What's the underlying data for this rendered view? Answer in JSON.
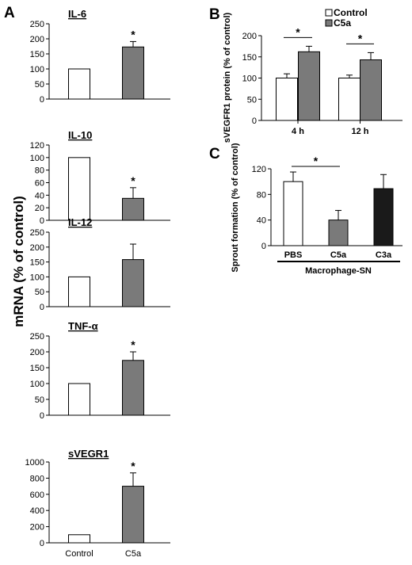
{
  "figure": {
    "panel_letters": [
      "A",
      "B",
      "C"
    ],
    "shared_ylabel_A": "mRNA (% of control)"
  },
  "chart_data": [
    {
      "panel": "A",
      "type": "bar",
      "title": "IL-6",
      "categories": [
        "Control",
        "C5a"
      ],
      "values": [
        100,
        173
      ],
      "errors": [
        0,
        18
      ],
      "ylim": [
        0,
        250
      ],
      "yticks": [
        0,
        50,
        100,
        150,
        200,
        250
      ],
      "significance": [
        "",
        "*"
      ],
      "bar_colors": [
        "#ffffff",
        "#7a7a7a"
      ],
      "xlabel": "",
      "show_category_labels": false
    },
    {
      "panel": "A",
      "type": "bar",
      "title": "IL-10",
      "categories": [
        "Control",
        "C5a"
      ],
      "values": [
        100,
        35
      ],
      "errors": [
        0,
        17
      ],
      "ylim": [
        0,
        120
      ],
      "yticks": [
        0,
        20,
        40,
        60,
        80,
        100,
        120
      ],
      "significance": [
        "",
        "*"
      ],
      "bar_colors": [
        "#ffffff",
        "#7a7a7a"
      ],
      "xlabel": "",
      "show_category_labels": false
    },
    {
      "panel": "A",
      "type": "bar",
      "title": "IL-12",
      "categories": [
        "Control",
        "C5a"
      ],
      "values": [
        100,
        158
      ],
      "errors": [
        0,
        52
      ],
      "ylim": [
        0,
        250
      ],
      "yticks": [
        0,
        50,
        100,
        150,
        200,
        250
      ],
      "significance": [
        "",
        ""
      ],
      "bar_colors": [
        "#ffffff",
        "#7a7a7a"
      ],
      "xlabel": "",
      "show_category_labels": false
    },
    {
      "panel": "A",
      "type": "bar",
      "title": "TNF-α",
      "categories": [
        "Control",
        "C5a"
      ],
      "values": [
        100,
        173
      ],
      "errors": [
        0,
        27
      ],
      "ylim": [
        0,
        250
      ],
      "yticks": [
        0,
        50,
        100,
        150,
        200,
        250
      ],
      "significance": [
        "",
        "*"
      ],
      "bar_colors": [
        "#ffffff",
        "#7a7a7a"
      ],
      "xlabel": "",
      "show_category_labels": false
    },
    {
      "panel": "A",
      "type": "bar",
      "title": "sVEGR1",
      "categories": [
        "Control",
        "C5a"
      ],
      "values": [
        100,
        700
      ],
      "errors": [
        0,
        165
      ],
      "ylim": [
        0,
        1000
      ],
      "yticks": [
        0,
        200,
        400,
        600,
        800,
        1000
      ],
      "significance": [
        "",
        "*"
      ],
      "bar_colors": [
        "#ffffff",
        "#7a7a7a"
      ],
      "xlabel": "",
      "show_category_labels": true
    },
    {
      "panel": "B",
      "type": "bar",
      "ylabel": "sVEGFR1 protein (% of control)",
      "categories": [
        "4 h",
        "12 h"
      ],
      "series": [
        {
          "name": "Control",
          "values": [
            100,
            100
          ],
          "errors": [
            10,
            7
          ],
          "color": "#ffffff"
        },
        {
          "name": "C5a",
          "values": [
            162,
            143
          ],
          "errors": [
            13,
            17
          ],
          "color": "#7a7a7a"
        }
      ],
      "ylim": [
        0,
        200
      ],
      "yticks": [
        0,
        50,
        100,
        150,
        200
      ],
      "significance": [
        "*",
        "*"
      ],
      "legend": "top-left"
    },
    {
      "panel": "C",
      "type": "bar",
      "ylabel": "Sprout formation (% of control)",
      "categories": [
        "PBS",
        "C5a",
        "C3a"
      ],
      "values": [
        100,
        40,
        89
      ],
      "errors": [
        15,
        15,
        22
      ],
      "bar_colors": [
        "#ffffff",
        "#7a7a7a",
        "#1a1a1a"
      ],
      "ylim": [
        0,
        120
      ],
      "yticks": [
        0,
        40,
        80,
        120
      ],
      "significance_pair": [
        "PBS",
        "C5a",
        "*"
      ],
      "group_label": "Macrophage-SN"
    }
  ]
}
